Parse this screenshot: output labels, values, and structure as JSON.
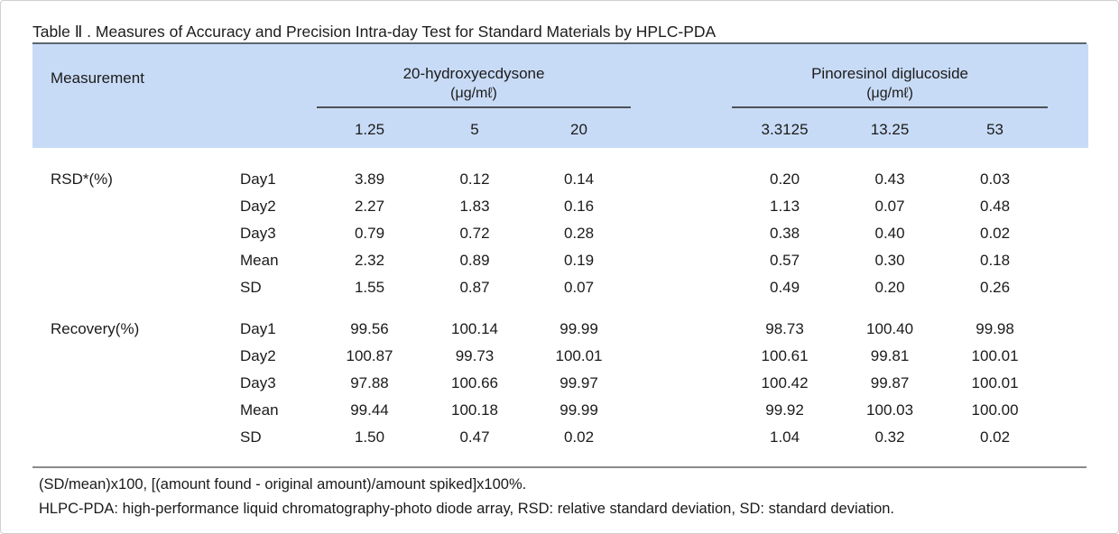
{
  "title": "Table Ⅱ . Measures of Accuracy and Precision Intra-day Test for Standard Materials by HPLC-PDA",
  "colors": {
    "header_bg": "#c8dbf6",
    "title_rule": "#5d6570",
    "group_rule": "#4c5157",
    "footer_rule": "#8a8a8a"
  },
  "header": {
    "measurement_label": "Measurement",
    "groups": [
      {
        "name": "20-hydroxyecdysone",
        "unit": "(μg/mℓ)",
        "levels": [
          "1.25",
          "5",
          "20"
        ]
      },
      {
        "name": "Pinoresinol diglucoside",
        "unit": "(μg/mℓ)",
        "levels": [
          "3.3125",
          "13.25",
          "53"
        ]
      }
    ]
  },
  "table": {
    "sections": [
      {
        "label": "RSD*(%)",
        "rows": [
          {
            "sub": "Day1",
            "values": [
              "3.89",
              "0.12",
              "0.14",
              "0.20",
              "0.43",
              "0.03"
            ]
          },
          {
            "sub": "Day2",
            "values": [
              "2.27",
              "1.83",
              "0.16",
              "1.13",
              "0.07",
              "0.48"
            ]
          },
          {
            "sub": "Day3",
            "values": [
              "0.79",
              "0.72",
              "0.28",
              "0.38",
              "0.40",
              "0.02"
            ]
          },
          {
            "sub": "Mean",
            "values": [
              "2.32",
              "0.89",
              "0.19",
              "0.57",
              "0.30",
              "0.18"
            ]
          },
          {
            "sub": "SD",
            "values": [
              "1.55",
              "0.87",
              "0.07",
              "0.49",
              "0.20",
              "0.26"
            ]
          }
        ]
      },
      {
        "label": "Recovery(%)",
        "rows": [
          {
            "sub": "Day1",
            "values": [
              "99.56",
              "100.14",
              "99.99",
              "98.73",
              "100.40",
              "99.98"
            ]
          },
          {
            "sub": "Day2",
            "values": [
              "100.87",
              "99.73",
              "100.01",
              "100.61",
              "99.81",
              "100.01"
            ]
          },
          {
            "sub": "Day3",
            "values": [
              "97.88",
              "100.66",
              "99.97",
              "100.42",
              "99.87",
              "100.01"
            ]
          },
          {
            "sub": "Mean",
            "values": [
              "99.44",
              "100.18",
              "99.99",
              "99.92",
              "100.03",
              "100.00"
            ]
          },
          {
            "sub": "SD",
            "values": [
              "1.50",
              "0.47",
              "0.02",
              "1.04",
              "0.32",
              "0.02"
            ]
          }
        ]
      }
    ]
  },
  "footnotes": [
    "(SD/mean)x100, [(amount found - original amount)/amount spiked]x100%.",
    "HLPC-PDA: high-performance liquid chromatography-photo diode array, RSD: relative standard deviation, SD: standard deviation."
  ]
}
